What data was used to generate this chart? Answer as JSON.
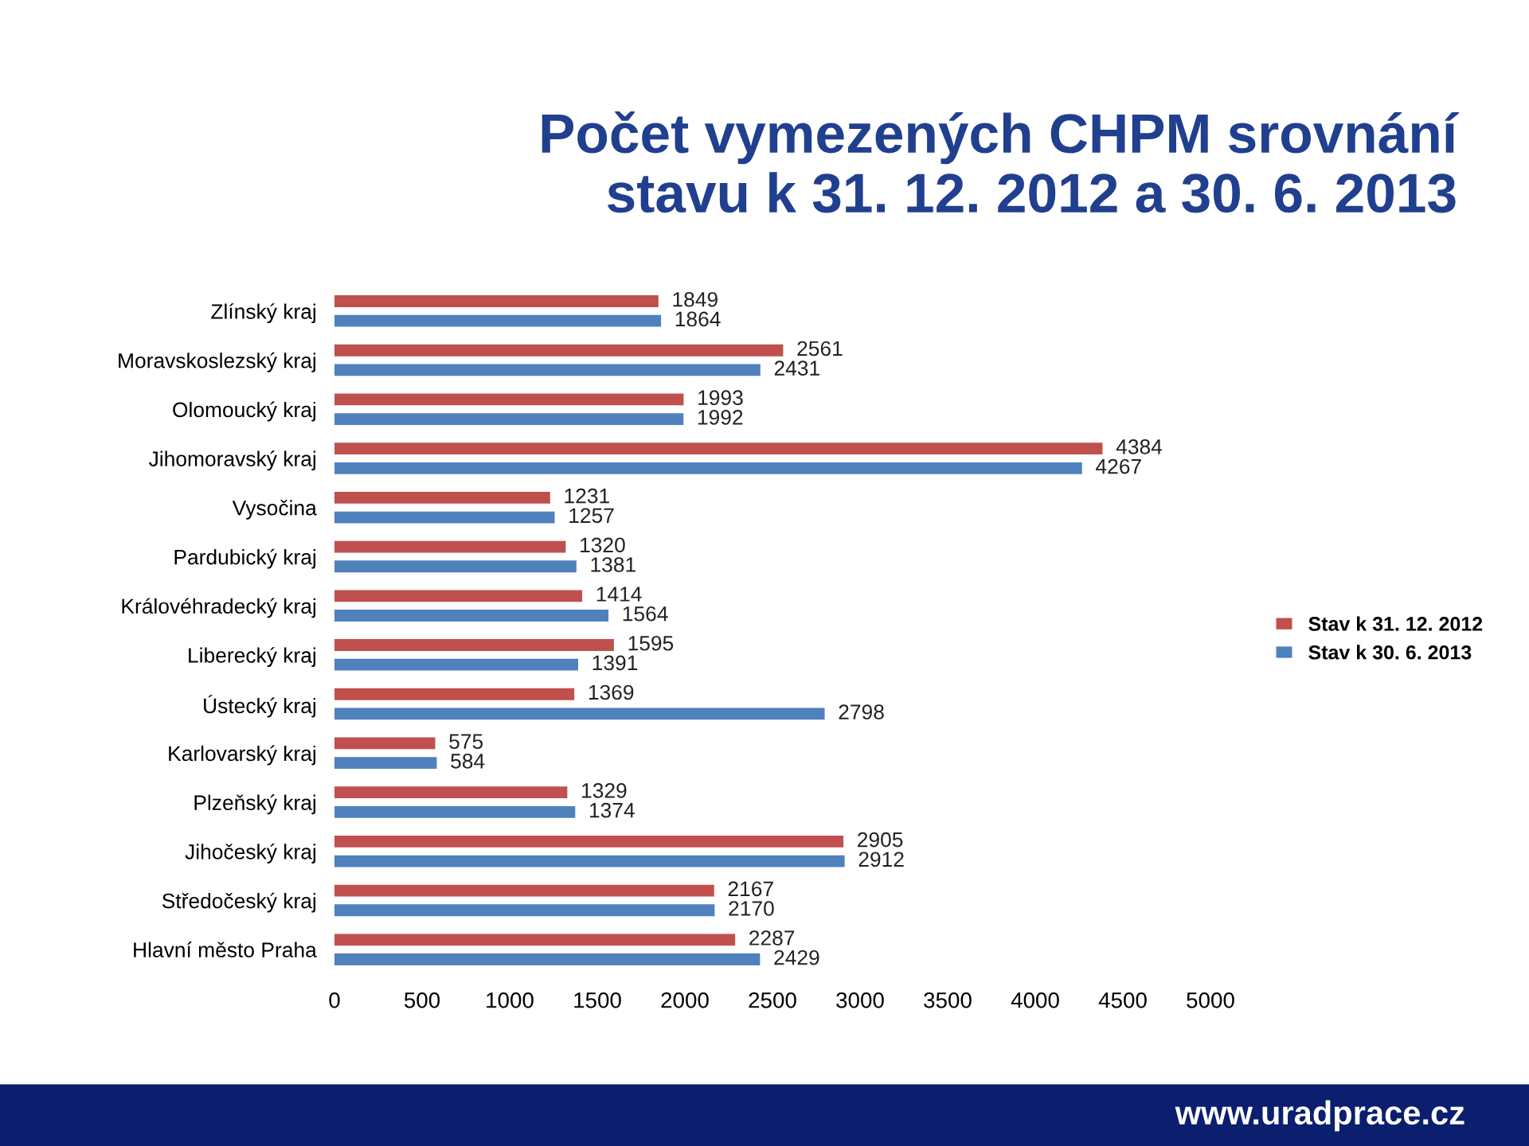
{
  "chart_data": {
    "type": "bar",
    "orientation": "horizontal",
    "title": "Počet vymezených CHPM srovnání\nstavu k 31. 12. 2012 a 30. 6. 2013",
    "categories": [
      "Zlínský kraj",
      "Moravskoslezský kraj",
      "Olomoucký kraj",
      "Jihomoravský kraj",
      "Vysočina",
      "Pardubický kraj",
      "Královéhradecký kraj",
      "Liberecký kraj",
      "Ústecký kraj",
      "Karlovarský kraj",
      "Plzeňský kraj",
      "Jihočeský kraj",
      "Středočeský kraj",
      "Hlavní město Praha"
    ],
    "series": [
      {
        "name": "Stav k 31. 12. 2012",
        "color": "#c0504d",
        "values": [
          1849,
          2561,
          1993,
          4384,
          1231,
          1320,
          1414,
          1595,
          1369,
          575,
          1329,
          2905,
          2167,
          2287
        ]
      },
      {
        "name": "Stav k 30. 6. 2013",
        "color": "#4f81bd",
        "values": [
          1864,
          2431,
          1992,
          4267,
          1257,
          1381,
          1564,
          1391,
          2798,
          584,
          1374,
          2912,
          2170,
          2429
        ]
      }
    ],
    "xlim": [
      0,
      5000
    ],
    "xticks": [
      0,
      500,
      1000,
      1500,
      2000,
      2500,
      3000,
      3500,
      4000,
      4500,
      5000
    ],
    "data_labels": true,
    "grid": false,
    "legend": "right",
    "annotations": [
      "www.uradprace.cz"
    ]
  }
}
